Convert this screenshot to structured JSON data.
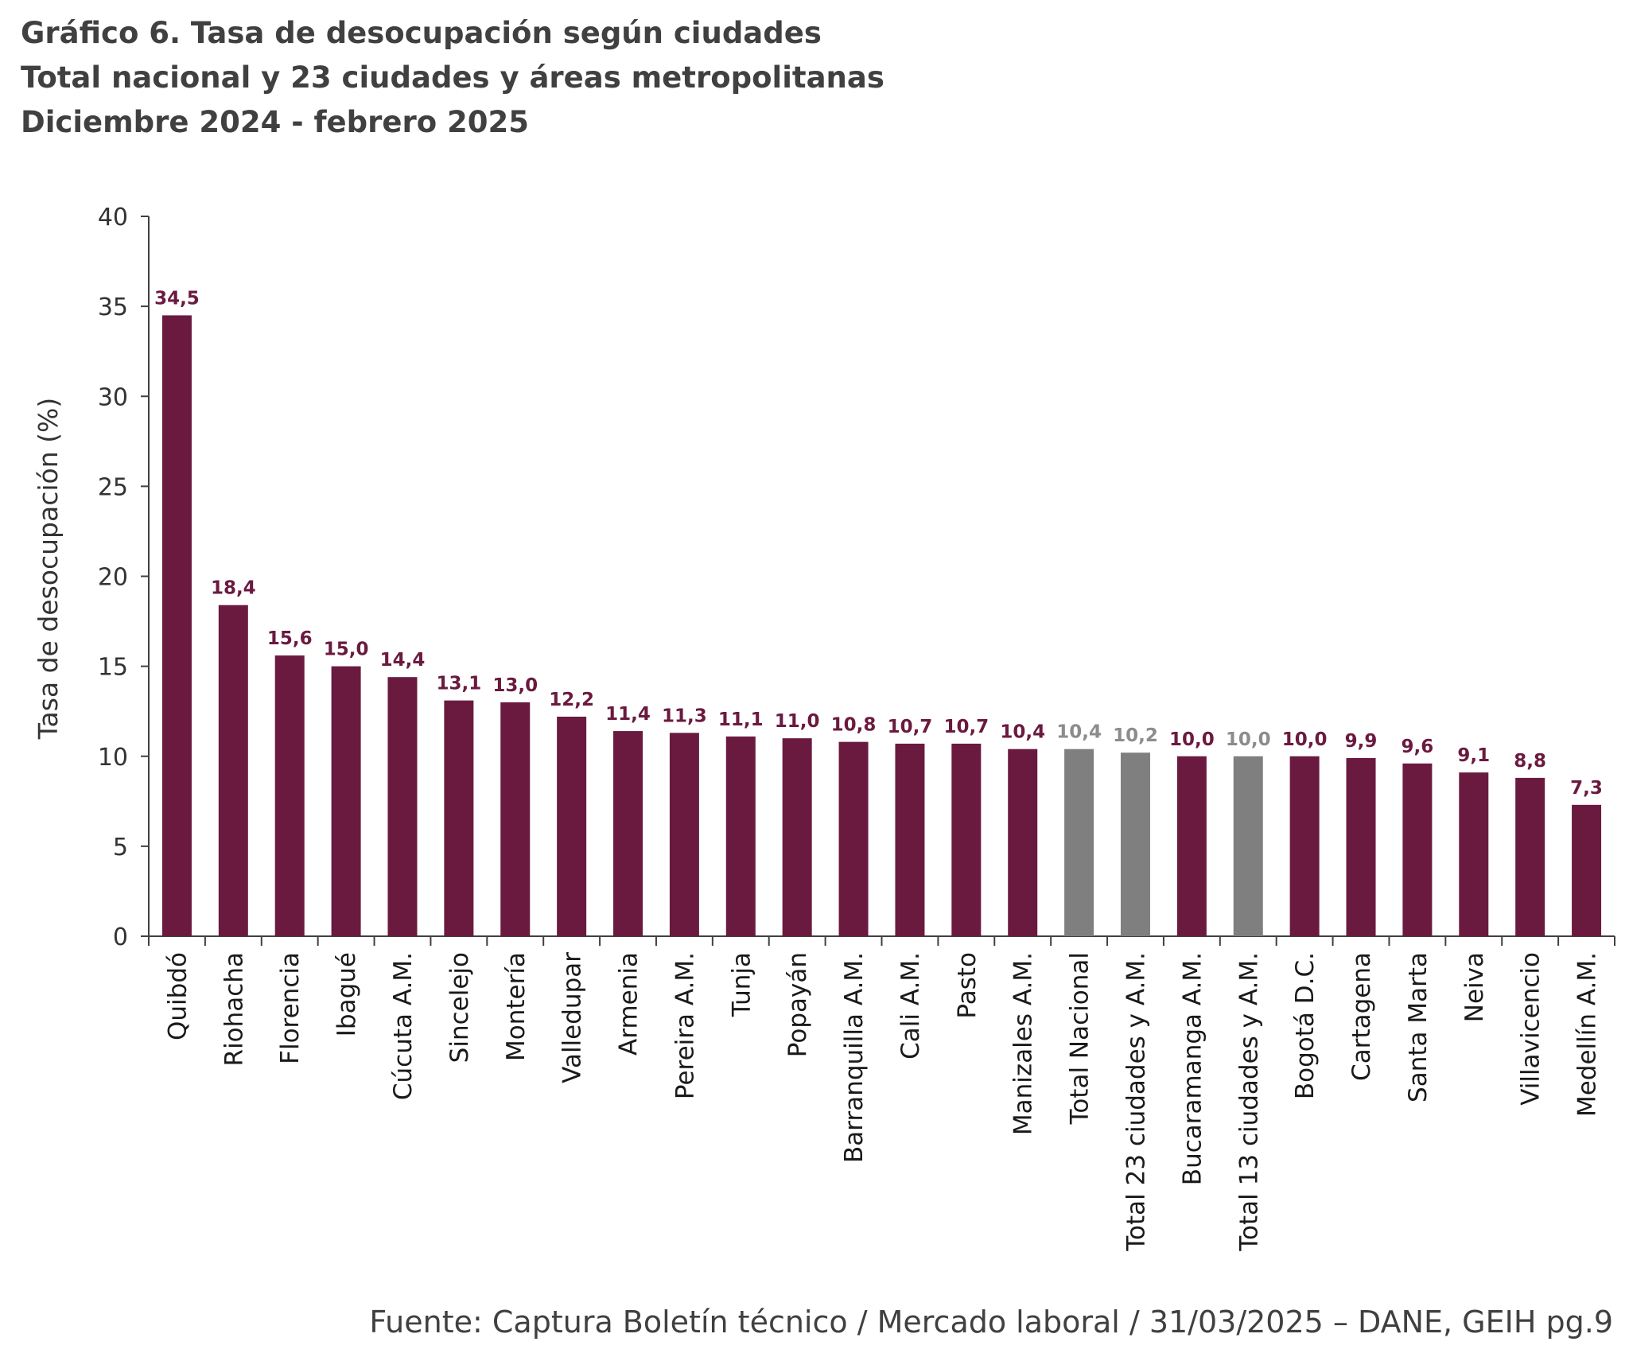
{
  "header": {
    "title_line1": "Gráfico 6. Tasa de desocupación según ciudades",
    "title_line2": "Total nacional y 23 ciudades y áreas metropolitanas",
    "title_line3": "Diciembre 2024 - febrero 2025"
  },
  "footer": {
    "source": "Fuente: Captura Boletín técnico / Mercado laboral / 31/03/2025 – DANE, GEIH pg.9"
  },
  "colors": {
    "city": "#6b1a3f",
    "aggregate": "#7f7f7f",
    "city_label": "#6b1a3f",
    "aggregate_label": "#8c8c8c",
    "axis": "#404040"
  },
  "chart_data": {
    "type": "bar",
    "title": "Gráfico 6. Tasa de desocupación según ciudades",
    "subtitle": "Total nacional y 23 ciudades y áreas metropolitanas — Diciembre 2024 - febrero 2025",
    "xlabel": "",
    "ylabel": "Tasa de desocupación (%)",
    "ylim": [
      0,
      40
    ],
    "yticks": [
      0,
      5,
      10,
      15,
      20,
      25,
      30,
      35,
      40
    ],
    "ytick_labels": [
      "0",
      "5",
      "10",
      "15",
      "20",
      "25",
      "30",
      "35",
      "40"
    ],
    "grid": false,
    "legend": "none",
    "categories": [
      "Quibdó",
      "Riohacha",
      "Florencia",
      "Ibagué",
      "Cúcuta A.M.",
      "Sincelejo",
      "Montería",
      "Valledupar",
      "Armenia",
      "Pereira A.M.",
      "Tunja",
      "Popayán",
      "Barranquilla A.M.",
      "Cali A.M.",
      "Pasto",
      "Manizales A.M.",
      "Total Nacional",
      "Total 23 ciudades y A.M.",
      "Bucaramanga A.M.",
      "Total 13 ciudades y A.M.",
      "Bogotá D.C.",
      "Cartagena",
      "Santa Marta",
      "Neiva",
      "Villavicencio",
      "Medellín A.M."
    ],
    "values": [
      34.5,
      18.4,
      15.6,
      15.0,
      14.4,
      13.1,
      13.0,
      12.2,
      11.4,
      11.3,
      11.1,
      11.0,
      10.8,
      10.7,
      10.7,
      10.4,
      10.4,
      10.2,
      10.0,
      10.0,
      10.0,
      9.9,
      9.6,
      9.1,
      8.8,
      7.3
    ],
    "value_labels": [
      "34,5",
      "18,4",
      "15,6",
      "15,0",
      "14,4",
      "13,1",
      "13,0",
      "12,2",
      "11,4",
      "11,3",
      "11,1",
      "11,0",
      "10,8",
      "10,7",
      "10,7",
      "10,4",
      "10,4",
      "10,2",
      "10,0",
      "10,0",
      "10,0",
      "9,9",
      "9,6",
      "9,1",
      "8,8",
      "7,3"
    ],
    "aggregate_categories": [
      "Total Nacional",
      "Total 23 ciudades y A.M.",
      "Total 13 ciudades y A.M."
    ]
  }
}
